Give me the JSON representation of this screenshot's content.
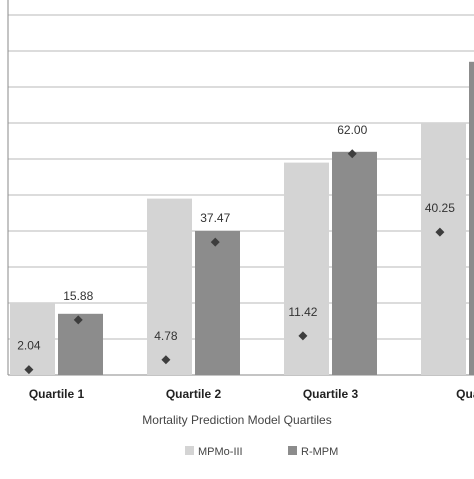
{
  "chart_data": {
    "type": "bar",
    "xlabel": "Mortality Prediction Model Quartiles",
    "ylabel": "",
    "title": "",
    "categories": [
      "Quartile 1",
      "Quartile 2",
      "Quartile 3",
      "Quartil"
    ],
    "ylim": [
      0,
      100
    ],
    "grid": true,
    "legend_position": "bottom",
    "series": [
      {
        "name": "MPMo-III",
        "color": "#d4d4d4",
        "values": [
          20,
          49,
          59,
          70
        ]
      },
      {
        "name": "R-MPM",
        "color": "#8c8c8c",
        "values": [
          17,
          40,
          62,
          87
        ]
      }
    ],
    "points": [
      {
        "value": 2.04,
        "label": "2.04",
        "category": 0,
        "series": 0
      },
      {
        "value": 15.88,
        "label": "15.88",
        "category": 0,
        "series": 1
      },
      {
        "value": 4.78,
        "label": "4.78",
        "category": 1,
        "series": 0
      },
      {
        "value": 37.47,
        "label": "37.47",
        "category": 1,
        "series": 1
      },
      {
        "value": 11.42,
        "label": "11.42",
        "category": 2,
        "series": 0
      },
      {
        "value": 62.0,
        "label": "62.00",
        "category": 2,
        "series": 1
      },
      {
        "value": 40.25,
        "label": "40.25",
        "category": 3,
        "series": 0
      }
    ],
    "marker_color": "#3d3d3d",
    "gridline_color": "#b8b8b8"
  }
}
